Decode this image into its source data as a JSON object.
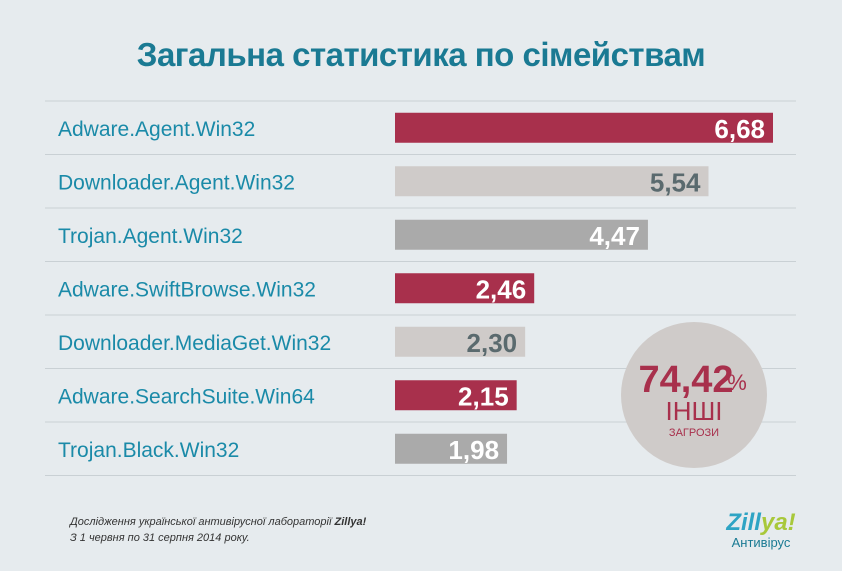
{
  "header": {
    "title": "Загальна статистика по сімействам"
  },
  "chart_data": {
    "type": "bar",
    "orientation": "horizontal",
    "categories": [
      "Adware.Agent.Win32",
      "Downloader.Agent.Win32",
      "Trojan.Agent.Win32",
      "Adware.SwiftBrowse.Win32",
      "Downloader.MediaGet.Win32",
      "Adware.SearchSuite.Win64",
      "Trojan.Black.Win32"
    ],
    "values": [
      6.68,
      5.54,
      4.47,
      2.46,
      2.3,
      2.15,
      1.98
    ],
    "value_labels": [
      "6,68",
      "5,54",
      "4,47",
      "2,46",
      "2,30",
      "2,15",
      "1,98"
    ],
    "bar_colors": [
      "#a8304c",
      "#cfcbc9",
      "#aaaaaa",
      "#a8304c",
      "#cfcbc9",
      "#a8304c",
      "#aaaaaa"
    ],
    "label_colors": [
      "#ffffff",
      "#5a6a6e",
      "#ffffff",
      "#ffffff",
      "#5a6a6e",
      "#ffffff",
      "#ffffff"
    ],
    "category_label_color": "#1a8aa8",
    "grid": false
  },
  "others_badge": {
    "value": "74,42",
    "percent_sign": "%",
    "label": "ІНШІ",
    "sublabel": "ЗАГРОЗИ",
    "color": "#a8304c"
  },
  "footer": {
    "note_line1": "Дослідження української антивірусної лабораторії ",
    "note_brand": "Zillya!",
    "note_line2": "З 1 червня по 31 серпня 2014 року."
  },
  "logo": {
    "name_main": "Zill",
    "name_accent": "ya!",
    "subtitle": "Антивірус"
  }
}
